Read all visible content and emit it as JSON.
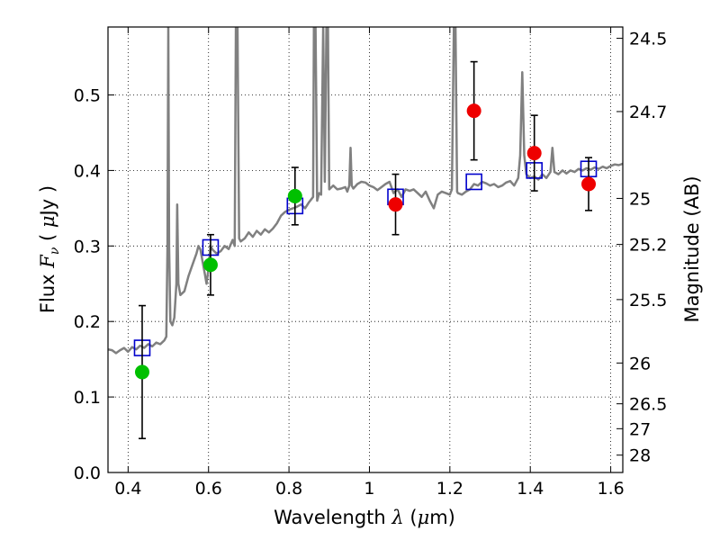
{
  "chart_data": {
    "type": "scatter",
    "xlabel": {
      "prefix": "Wavelength  ",
      "symbol": "λ",
      "suffix": " (",
      "unit_mu": "μ",
      "unit_rest": "m)"
    },
    "ylabel": {
      "prefix": "Flux  ",
      "symbol": "F",
      "sub": "ν",
      "mid": "  ( ",
      "unit_mu": "μ",
      "unit_rest": "Jy )"
    },
    "y2label": "Magnitude (AB)",
    "xlim": [
      0.35,
      1.63
    ],
    "ylim": [
      0.0,
      0.59
    ],
    "x_ticks": [
      {
        "value": 0.4,
        "label": "0.4"
      },
      {
        "value": 0.6,
        "label": "0.6"
      },
      {
        "value": 0.8,
        "label": "0.8"
      },
      {
        "value": 1.0,
        "label": "1"
      },
      {
        "value": 1.2,
        "label": "1.2"
      },
      {
        "value": 1.4,
        "label": "1.4"
      },
      {
        "value": 1.6,
        "label": "1.6"
      }
    ],
    "y_ticks": [
      {
        "value": 0.0,
        "label": "0.0"
      },
      {
        "value": 0.1,
        "label": "0.1"
      },
      {
        "value": 0.2,
        "label": "0.2"
      },
      {
        "value": 0.3,
        "label": "0.3"
      },
      {
        "value": 0.4,
        "label": "0.4"
      },
      {
        "value": 0.5,
        "label": "0.5"
      }
    ],
    "y2_ticks": [
      {
        "label": "24.5",
        "flux": 0.575
      },
      {
        "label": "24.7",
        "flux": 0.478
      },
      {
        "label": "25",
        "flux": 0.363
      },
      {
        "label": "25.2",
        "flux": 0.302
      },
      {
        "label": "25.5",
        "flux": 0.229
      },
      {
        "label": "26",
        "flux": 0.145
      },
      {
        "label": "26.5",
        "flux": 0.091
      },
      {
        "label": "27",
        "flux": 0.058
      },
      {
        "label": "28",
        "flux": 0.023
      }
    ],
    "grid": true,
    "spectrum": {
      "color": "#808080",
      "points": [
        [
          0.35,
          0.163
        ],
        [
          0.36,
          0.162
        ],
        [
          0.37,
          0.158
        ],
        [
          0.38,
          0.162
        ],
        [
          0.39,
          0.165
        ],
        [
          0.4,
          0.16
        ],
        [
          0.41,
          0.166
        ],
        [
          0.42,
          0.163
        ],
        [
          0.43,
          0.168
        ],
        [
          0.44,
          0.165
        ],
        [
          0.45,
          0.17
        ],
        [
          0.46,
          0.167
        ],
        [
          0.47,
          0.172
        ],
        [
          0.48,
          0.17
        ],
        [
          0.49,
          0.175
        ],
        [
          0.495,
          0.18
        ],
        [
          0.498,
          0.3
        ],
        [
          0.5,
          0.59
        ],
        [
          0.502,
          0.3
        ],
        [
          0.505,
          0.2
        ],
        [
          0.51,
          0.195
        ],
        [
          0.515,
          0.205
        ],
        [
          0.52,
          0.25
        ],
        [
          0.522,
          0.355
        ],
        [
          0.525,
          0.25
        ],
        [
          0.53,
          0.235
        ],
        [
          0.54,
          0.24
        ],
        [
          0.55,
          0.26
        ],
        [
          0.56,
          0.275
        ],
        [
          0.57,
          0.29
        ],
        [
          0.575,
          0.3
        ],
        [
          0.58,
          0.295
        ],
        [
          0.585,
          0.28
        ],
        [
          0.59,
          0.265
        ],
        [
          0.595,
          0.25
        ],
        [
          0.6,
          0.27
        ],
        [
          0.605,
          0.3
        ],
        [
          0.61,
          0.295
        ],
        [
          0.62,
          0.29
        ],
        [
          0.63,
          0.293
        ],
        [
          0.64,
          0.3
        ],
        [
          0.65,
          0.296
        ],
        [
          0.66,
          0.308
        ],
        [
          0.665,
          0.3
        ],
        [
          0.668,
          0.59
        ],
        [
          0.672,
          0.59
        ],
        [
          0.676,
          0.31
        ],
        [
          0.68,
          0.306
        ],
        [
          0.69,
          0.31
        ],
        [
          0.7,
          0.318
        ],
        [
          0.71,
          0.312
        ],
        [
          0.72,
          0.32
        ],
        [
          0.73,
          0.315
        ],
        [
          0.74,
          0.322
        ],
        [
          0.75,
          0.318
        ],
        [
          0.76,
          0.323
        ],
        [
          0.77,
          0.33
        ],
        [
          0.78,
          0.34
        ],
        [
          0.79,
          0.345
        ],
        [
          0.8,
          0.348
        ],
        [
          0.81,
          0.35
        ],
        [
          0.82,
          0.352
        ],
        [
          0.83,
          0.355
        ],
        [
          0.84,
          0.35
        ],
        [
          0.85,
          0.358
        ],
        [
          0.86,
          0.365
        ],
        [
          0.862,
          0.59
        ],
        [
          0.866,
          0.59
        ],
        [
          0.87,
          0.36
        ],
        [
          0.875,
          0.37
        ],
        [
          0.88,
          0.368
        ],
        [
          0.885,
          0.59
        ],
        [
          0.889,
          0.385
        ],
        [
          0.893,
          0.59
        ],
        [
          0.897,
          0.59
        ],
        [
          0.9,
          0.375
        ],
        [
          0.91,
          0.38
        ],
        [
          0.92,
          0.375
        ],
        [
          0.93,
          0.376
        ],
        [
          0.94,
          0.378
        ],
        [
          0.945,
          0.372
        ],
        [
          0.95,
          0.38
        ],
        [
          0.953,
          0.43
        ],
        [
          0.956,
          0.38
        ],
        [
          0.96,
          0.376
        ],
        [
          0.97,
          0.382
        ],
        [
          0.98,
          0.385
        ],
        [
          0.99,
          0.384
        ],
        [
          1.0,
          0.38
        ],
        [
          1.01,
          0.378
        ],
        [
          1.02,
          0.374
        ],
        [
          1.03,
          0.378
        ],
        [
          1.04,
          0.382
        ],
        [
          1.05,
          0.385
        ],
        [
          1.06,
          0.37
        ],
        [
          1.07,
          0.375
        ],
        [
          1.08,
          0.365
        ],
        [
          1.09,
          0.375
        ],
        [
          1.1,
          0.373
        ],
        [
          1.11,
          0.375
        ],
        [
          1.12,
          0.37
        ],
        [
          1.13,
          0.365
        ],
        [
          1.14,
          0.372
        ],
        [
          1.15,
          0.36
        ],
        [
          1.16,
          0.35
        ],
        [
          1.17,
          0.368
        ],
        [
          1.18,
          0.372
        ],
        [
          1.19,
          0.37
        ],
        [
          1.2,
          0.368
        ],
        [
          1.205,
          0.375
        ],
        [
          1.21,
          0.59
        ],
        [
          1.214,
          0.59
        ],
        [
          1.218,
          0.372
        ],
        [
          1.22,
          0.37
        ],
        [
          1.23,
          0.368
        ],
        [
          1.24,
          0.372
        ],
        [
          1.25,
          0.375
        ],
        [
          1.26,
          0.382
        ],
        [
          1.27,
          0.38
        ],
        [
          1.28,
          0.385
        ],
        [
          1.29,
          0.383
        ],
        [
          1.3,
          0.38
        ],
        [
          1.31,
          0.382
        ],
        [
          1.32,
          0.378
        ],
        [
          1.33,
          0.38
        ],
        [
          1.34,
          0.384
        ],
        [
          1.35,
          0.386
        ],
        [
          1.36,
          0.38
        ],
        [
          1.37,
          0.39
        ],
        [
          1.375,
          0.42
        ],
        [
          1.38,
          0.53
        ],
        [
          1.385,
          0.42
        ],
        [
          1.39,
          0.395
        ],
        [
          1.4,
          0.39
        ],
        [
          1.41,
          0.392
        ],
        [
          1.42,
          0.388
        ],
        [
          1.43,
          0.395
        ],
        [
          1.44,
          0.39
        ],
        [
          1.45,
          0.398
        ],
        [
          1.455,
          0.43
        ],
        [
          1.46,
          0.398
        ],
        [
          1.47,
          0.395
        ],
        [
          1.48,
          0.4
        ],
        [
          1.49,
          0.396
        ],
        [
          1.5,
          0.4
        ],
        [
          1.51,
          0.398
        ],
        [
          1.52,
          0.402
        ],
        [
          1.53,
          0.4
        ],
        [
          1.54,
          0.403
        ],
        [
          1.55,
          0.401
        ],
        [
          1.56,
          0.404
        ],
        [
          1.57,
          0.402
        ],
        [
          1.58,
          0.405
        ],
        [
          1.59,
          0.403
        ],
        [
          1.6,
          0.406
        ],
        [
          1.61,
          0.408
        ],
        [
          1.62,
          0.407
        ],
        [
          1.63,
          0.409
        ]
      ]
    },
    "model_points": {
      "color": "#0000cc",
      "marker": "open-square",
      "points": [
        [
          0.435,
          0.165
        ],
        [
          0.605,
          0.298
        ],
        [
          0.815,
          0.353
        ],
        [
          1.065,
          0.365
        ],
        [
          1.26,
          0.385
        ],
        [
          1.41,
          0.4
        ],
        [
          1.545,
          0.402
        ]
      ]
    },
    "observed_points": [
      {
        "x": 0.435,
        "y": 0.133,
        "err": 0.088,
        "color": "#00c000"
      },
      {
        "x": 0.605,
        "y": 0.275,
        "err": 0.04,
        "color": "#00c000"
      },
      {
        "x": 0.815,
        "y": 0.366,
        "err": 0.038,
        "color": "#00c000"
      },
      {
        "x": 1.065,
        "y": 0.355,
        "err": 0.04,
        "color": "#ee0000"
      },
      {
        "x": 1.26,
        "y": 0.479,
        "err": 0.065,
        "color": "#ee0000"
      },
      {
        "x": 1.41,
        "y": 0.423,
        "err": 0.05,
        "color": "#ee0000"
      },
      {
        "x": 1.545,
        "y": 0.382,
        "err": 0.035,
        "color": "#ee0000"
      }
    ]
  }
}
